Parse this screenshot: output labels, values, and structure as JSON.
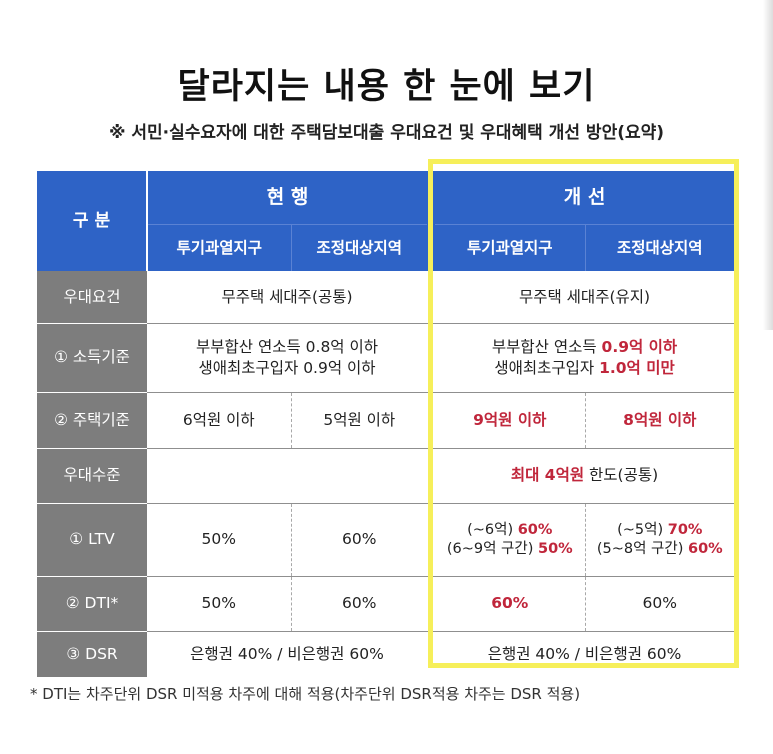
{
  "title": "달라지는 내용 한 눈에 보기",
  "subtitle": "※ 서민·실수요자에 대한 주택담보대출 우대요건 및 우대혜택 개선 방안(요약)",
  "header": {
    "category": "구 분",
    "current": "현 행",
    "improved": "개 선",
    "sub_current_1": "투기과열지구",
    "sub_current_2": "조정대상지역",
    "sub_improved_1": "투기과열지구",
    "sub_improved_2": "조정대상지역"
  },
  "rows": {
    "r1": {
      "label": "우대요건",
      "current": "무주택 세대주(공통)",
      "improved": "무주택 세대주(유지)"
    },
    "r2": {
      "label": "① 소득기준",
      "cur_line1": "부부합산 연소득 0.8억 이하",
      "cur_line2": "생애최초구입자 0.9억 이하",
      "imp_line1_pre": "부부합산 연소득 ",
      "imp_line1_hl": "0.9억 이하",
      "imp_line2_pre": "생애최초구입자 ",
      "imp_line2_hl": "1.0억 미만"
    },
    "r3": {
      "label": "② 주택기준",
      "c1": "6억원 이하",
      "c2": "5억원 이하",
      "i1": "9억원 이하",
      "i2": "8억원 이하"
    },
    "r4": {
      "label": "우대수준",
      "current": "",
      "imp_hl": "최대 4억원",
      "imp_post": " 한도(공통)"
    },
    "r5": {
      "label": "① LTV",
      "c1": "50%",
      "c2": "60%",
      "i1_line1_pre": "(~6억) ",
      "i1_line1_hl": "60%",
      "i1_line2_pre": "(6~9억 구간) ",
      "i1_line2_hl": "50%",
      "i2_line1_pre": "(~5억) ",
      "i2_line1_hl": "70%",
      "i2_line2_pre": "(5~8억 구간) ",
      "i2_line2_hl": "60%"
    },
    "r6": {
      "label": "② DTI*",
      "c1": "50%",
      "c2": "60%",
      "i1": "60%",
      "i2": "60%"
    },
    "r7": {
      "label": "③ DSR",
      "current": "은행권 40% / 비은행권 60%",
      "improved": "은행권 40% / 비은행권 60%"
    }
  },
  "footnote": "* DTI는 차주단위 DSR 미적용 차주에 대해 적용(차주단위 DSR적용 차주는 DSR 적용)",
  "colors": {
    "header_blue": "#2e63c6",
    "highlight_red": "#c0263b",
    "frame_yellow": "#f6ef5a"
  }
}
